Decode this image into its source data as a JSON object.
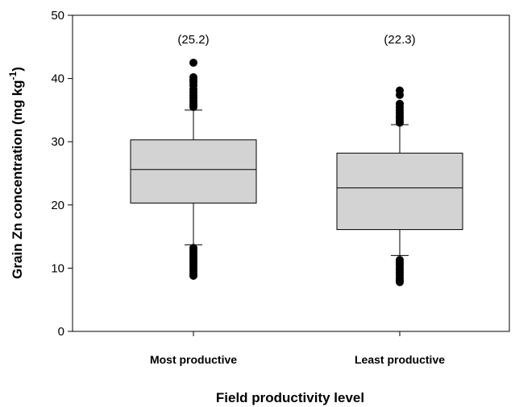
{
  "chart_data": {
    "type": "box",
    "categories": [
      "Most productive",
      "Least productive"
    ],
    "boxes": [
      {
        "category": "Most productive",
        "q1": 20.3,
        "median": 25.6,
        "q3": 30.3,
        "whisker_low": 13.7,
        "whisker_high": 35.0,
        "annotation": "(25.2)",
        "outliers": [
          42.5,
          40.2,
          39.8,
          39.4,
          38.9,
          38.3,
          37.8,
          37.3,
          36.9,
          36.4,
          35.9,
          35.5,
          13.2,
          12.8,
          12.4,
          12.0,
          11.6,
          11.2,
          10.8,
          10.4,
          10.0,
          9.6,
          9.2,
          8.8
        ]
      },
      {
        "category": "Least productive",
        "q1": 16.1,
        "median": 22.7,
        "q3": 28.2,
        "whisker_low": 12.0,
        "whisker_high": 32.7,
        "annotation": "(22.3)",
        "outliers": [
          38.1,
          37.4,
          36.0,
          35.5,
          35.0,
          34.6,
          34.2,
          33.8,
          33.4,
          33.0,
          11.3,
          10.9,
          10.5,
          10.1,
          9.7,
          9.3,
          8.9,
          8.5,
          8.1,
          7.8
        ]
      }
    ],
    "xlabel": "Field productivity level",
    "ylabel_main": "Grain Zn concentration (mg kg",
    "ylabel_sup": "-1",
    "ylabel_end": ")",
    "ylim": [
      0,
      50
    ],
    "yticks": [
      0,
      10,
      20,
      30,
      40,
      50
    ],
    "grid": false,
    "colors": {
      "box_fill": "#d3d3d3",
      "stroke": "#000000",
      "outlier": "#000000"
    }
  }
}
